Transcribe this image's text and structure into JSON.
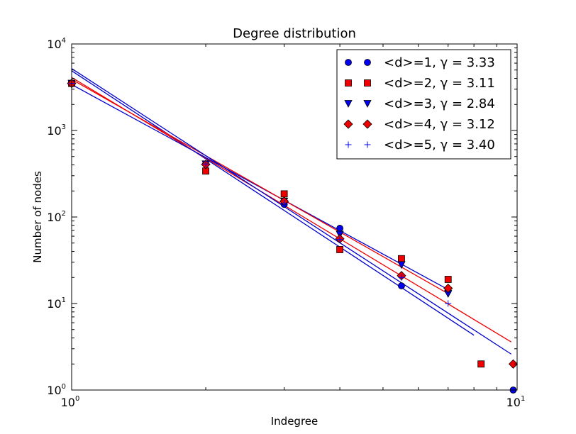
{
  "chart_data": {
    "type": "scatter",
    "title": "Degree distribution",
    "xlabel": "Indegree",
    "ylabel": "Number of nodes",
    "x_scale": "log",
    "y_scale": "log",
    "xlim": [
      1,
      10
    ],
    "ylim": [
      1,
      10000
    ],
    "x_ticks": [
      {
        "base": "10",
        "exp": "0",
        "value": 1
      },
      {
        "base": "10",
        "exp": "1",
        "value": 10
      }
    ],
    "y_ticks": [
      {
        "base": "10",
        "exp": "0",
        "value": 1
      },
      {
        "base": "10",
        "exp": "1",
        "value": 10
      },
      {
        "base": "10",
        "exp": "2",
        "value": 100
      },
      {
        "base": "10",
        "exp": "3",
        "value": 1000
      },
      {
        "base": "10",
        "exp": "4",
        "value": 10000
      }
    ],
    "grid": false,
    "legend_position": "upper right",
    "series": [
      {
        "name": "<d>=1, γ = 3.33",
        "marker": "circle",
        "color": "#0000ee",
        "points": [
          [
            1,
            3500
          ],
          [
            2,
            410
          ],
          [
            3,
            140
          ],
          [
            4,
            74
          ],
          [
            5.5,
            16
          ],
          [
            7,
            14
          ],
          [
            9.8,
            1
          ]
        ],
        "fit": {
          "x": [
            1,
            8
          ],
          "y": [
            4900,
            4.3
          ],
          "color": "#0000cc"
        }
      },
      {
        "name": "<d>=2, γ = 3.11",
        "marker": "square",
        "color": "#ee0000",
        "points": [
          [
            1,
            3500
          ],
          [
            2,
            340
          ],
          [
            3,
            185
          ],
          [
            4,
            42
          ],
          [
            5.5,
            33
          ],
          [
            7,
            19
          ],
          [
            8.3,
            2
          ]
        ],
        "fit": {
          "x": [
            1,
            9.7
          ],
          "y": [
            4100,
            3.6
          ],
          "color": "#ee0000"
        }
      },
      {
        "name": "<d>=3, γ = 2.84",
        "marker": "triangle-down",
        "color": "#0000ee",
        "points": [
          [
            1,
            3500
          ],
          [
            2,
            410
          ],
          [
            3,
            152
          ],
          [
            4,
            63
          ],
          [
            5.5,
            28
          ],
          [
            7,
            13
          ]
        ],
        "fit": {
          "x": [
            1,
            7
          ],
          "y": [
            3400,
            14.5
          ],
          "color": "#0000cc"
        }
      },
      {
        "name": "<d>=4, γ = 3.12",
        "marker": "diamond",
        "color": "#ee0000",
        "points": [
          [
            1,
            3500
          ],
          [
            2,
            405
          ],
          [
            3,
            152
          ],
          [
            4,
            56
          ],
          [
            5.5,
            21
          ],
          [
            7,
            15
          ],
          [
            9.8,
            2
          ]
        ],
        "fit": {
          "x": [
            1,
            7
          ],
          "y": [
            3900,
            13
          ],
          "color": "#ee0000"
        }
      },
      {
        "name": "<d>=5, γ = 3.40",
        "marker": "plus",
        "color": "#0000ee",
        "points": [
          [
            1,
            3500
          ],
          [
            2,
            410
          ],
          [
            3,
            145
          ],
          [
            4,
            55
          ],
          [
            5.5,
            20
          ],
          [
            7,
            10
          ]
        ],
        "fit": {
          "x": [
            1,
            9.7
          ],
          "y": [
            5200,
            2.6
          ],
          "color": "#0000cc"
        }
      }
    ]
  }
}
